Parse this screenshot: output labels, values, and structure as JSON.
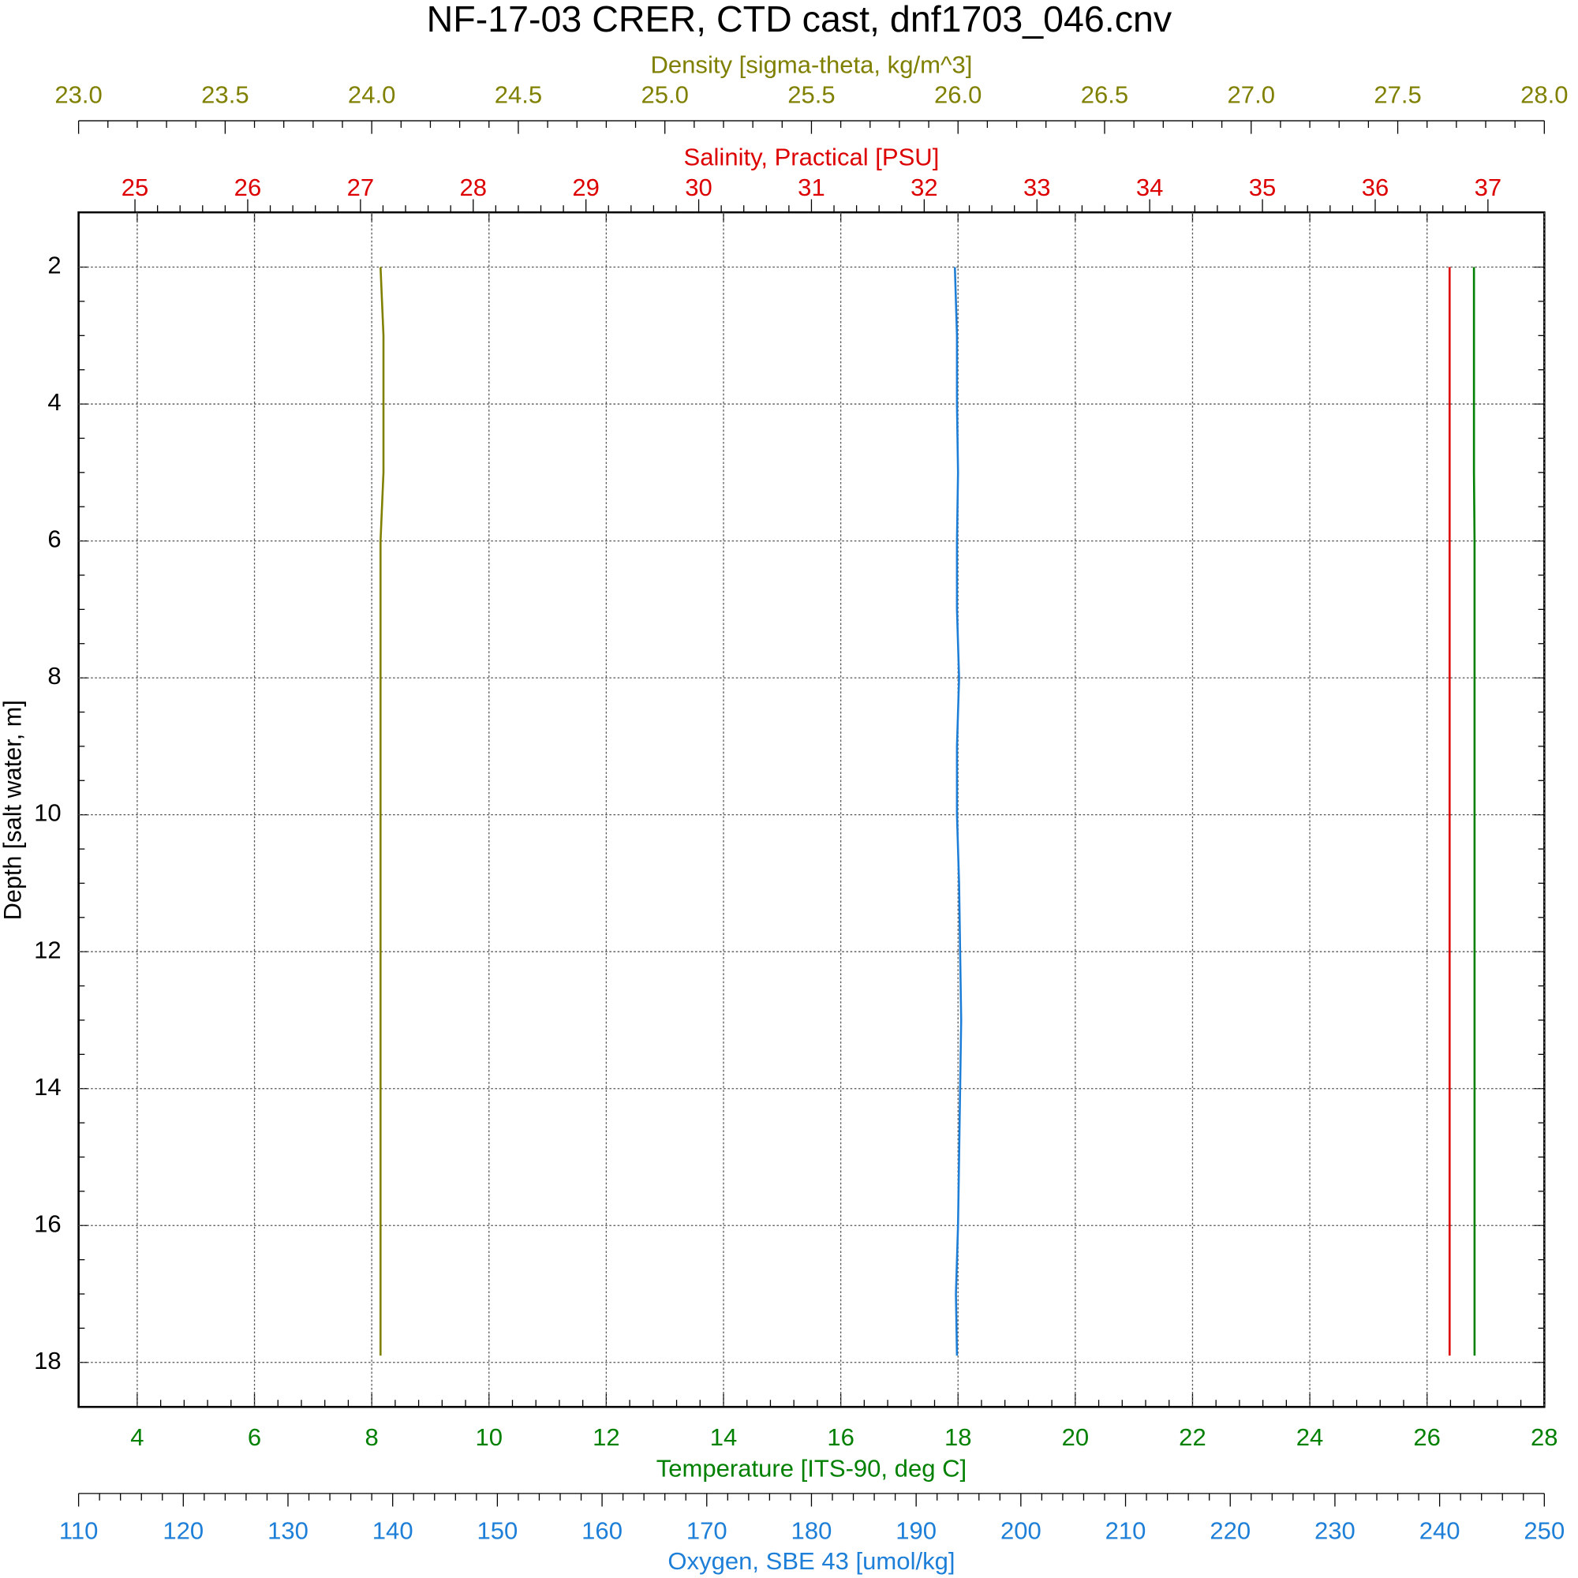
{
  "chart_data": {
    "type": "line",
    "title": "NF-17-03 CRER, CTD cast, dnf1703_046.cnv",
    "y_label": "Depth [salt water, m]",
    "ylim": [
      1.2,
      18.65
    ],
    "yticks": [
      2,
      4,
      6,
      8,
      10,
      12,
      14,
      16,
      18
    ],
    "y_inverted": true,
    "grid": true,
    "depth": [
      2,
      3,
      4,
      5,
      6,
      7,
      8,
      9,
      10,
      11,
      12,
      13,
      14,
      15,
      16,
      17,
      17.9
    ],
    "axes": [
      {
        "label": "Density [sigma-theta, kg/m^3]",
        "color": "#808000",
        "side": "top-outer",
        "xlim": [
          23,
          28
        ],
        "xticks": [
          {
            "value": 23,
            "label": "23.0"
          },
          {
            "value": 23.5,
            "label": "23.5"
          },
          {
            "value": 24,
            "label": "24.0"
          },
          {
            "value": 24.5,
            "label": "24.5"
          },
          {
            "value": 25,
            "label": "25.0"
          },
          {
            "value": 25.5,
            "label": "25.5"
          },
          {
            "value": 26,
            "label": "26.0"
          },
          {
            "value": 26.5,
            "label": "26.5"
          },
          {
            "value": 27,
            "label": "27.0"
          },
          {
            "value": 27.5,
            "label": "27.5"
          },
          {
            "value": 28,
            "label": "28.0"
          }
        ]
      },
      {
        "label": "Salinity, Practical [PSU]",
        "color": "#dd0000",
        "side": "top",
        "xlim": [
          24.5,
          37.5
        ],
        "xticks": [
          25,
          26,
          27,
          28,
          29,
          30,
          31,
          32,
          33,
          34,
          35,
          36,
          37
        ]
      },
      {
        "label": "Temperature [ITS-90, deg C]",
        "color": "#008000",
        "side": "bottom",
        "xlim": [
          3,
          28
        ],
        "xticks": [
          4,
          6,
          8,
          10,
          12,
          14,
          16,
          18,
          20,
          22,
          24,
          26,
          28
        ],
        "grid": true
      },
      {
        "label": "Oxygen, SBE 43 [umol/kg]",
        "color": "#1e7fd8",
        "side": "bottom-outer",
        "xlim": [
          110,
          250
        ],
        "xticks": [
          110,
          120,
          130,
          140,
          150,
          160,
          170,
          180,
          190,
          200,
          210,
          220,
          230,
          240,
          250
        ]
      }
    ],
    "series": [
      {
        "axis": 0,
        "color": "#808000",
        "values": [
          24.03,
          24.04,
          24.04,
          24.04,
          24.03,
          24.03,
          24.03,
          24.03,
          24.03,
          24.03,
          24.03,
          24.03,
          24.03,
          24.03,
          24.03,
          24.03,
          24.03
        ]
      },
      {
        "axis": 1,
        "color": "#dd0000",
        "values": [
          36.66,
          36.66,
          36.66,
          36.66,
          36.66,
          36.66,
          36.66,
          36.66,
          36.66,
          36.66,
          36.66,
          36.66,
          36.66,
          36.66,
          36.66,
          36.66,
          36.66
        ]
      },
      {
        "axis": 2,
        "color": "#008000",
        "values": [
          26.8,
          26.8,
          26.8,
          26.8,
          26.81,
          26.81,
          26.81,
          26.81,
          26.81,
          26.81,
          26.81,
          26.81,
          26.81,
          26.81,
          26.81,
          26.81,
          26.81
        ]
      },
      {
        "axis": 3,
        "color": "#1e7fd8",
        "values": [
          193.7,
          193.9,
          193.9,
          194.0,
          193.9,
          193.9,
          194.1,
          193.9,
          193.9,
          194.1,
          194.2,
          194.3,
          194.2,
          194.1,
          194.0,
          193.8,
          193.9
        ]
      }
    ]
  }
}
